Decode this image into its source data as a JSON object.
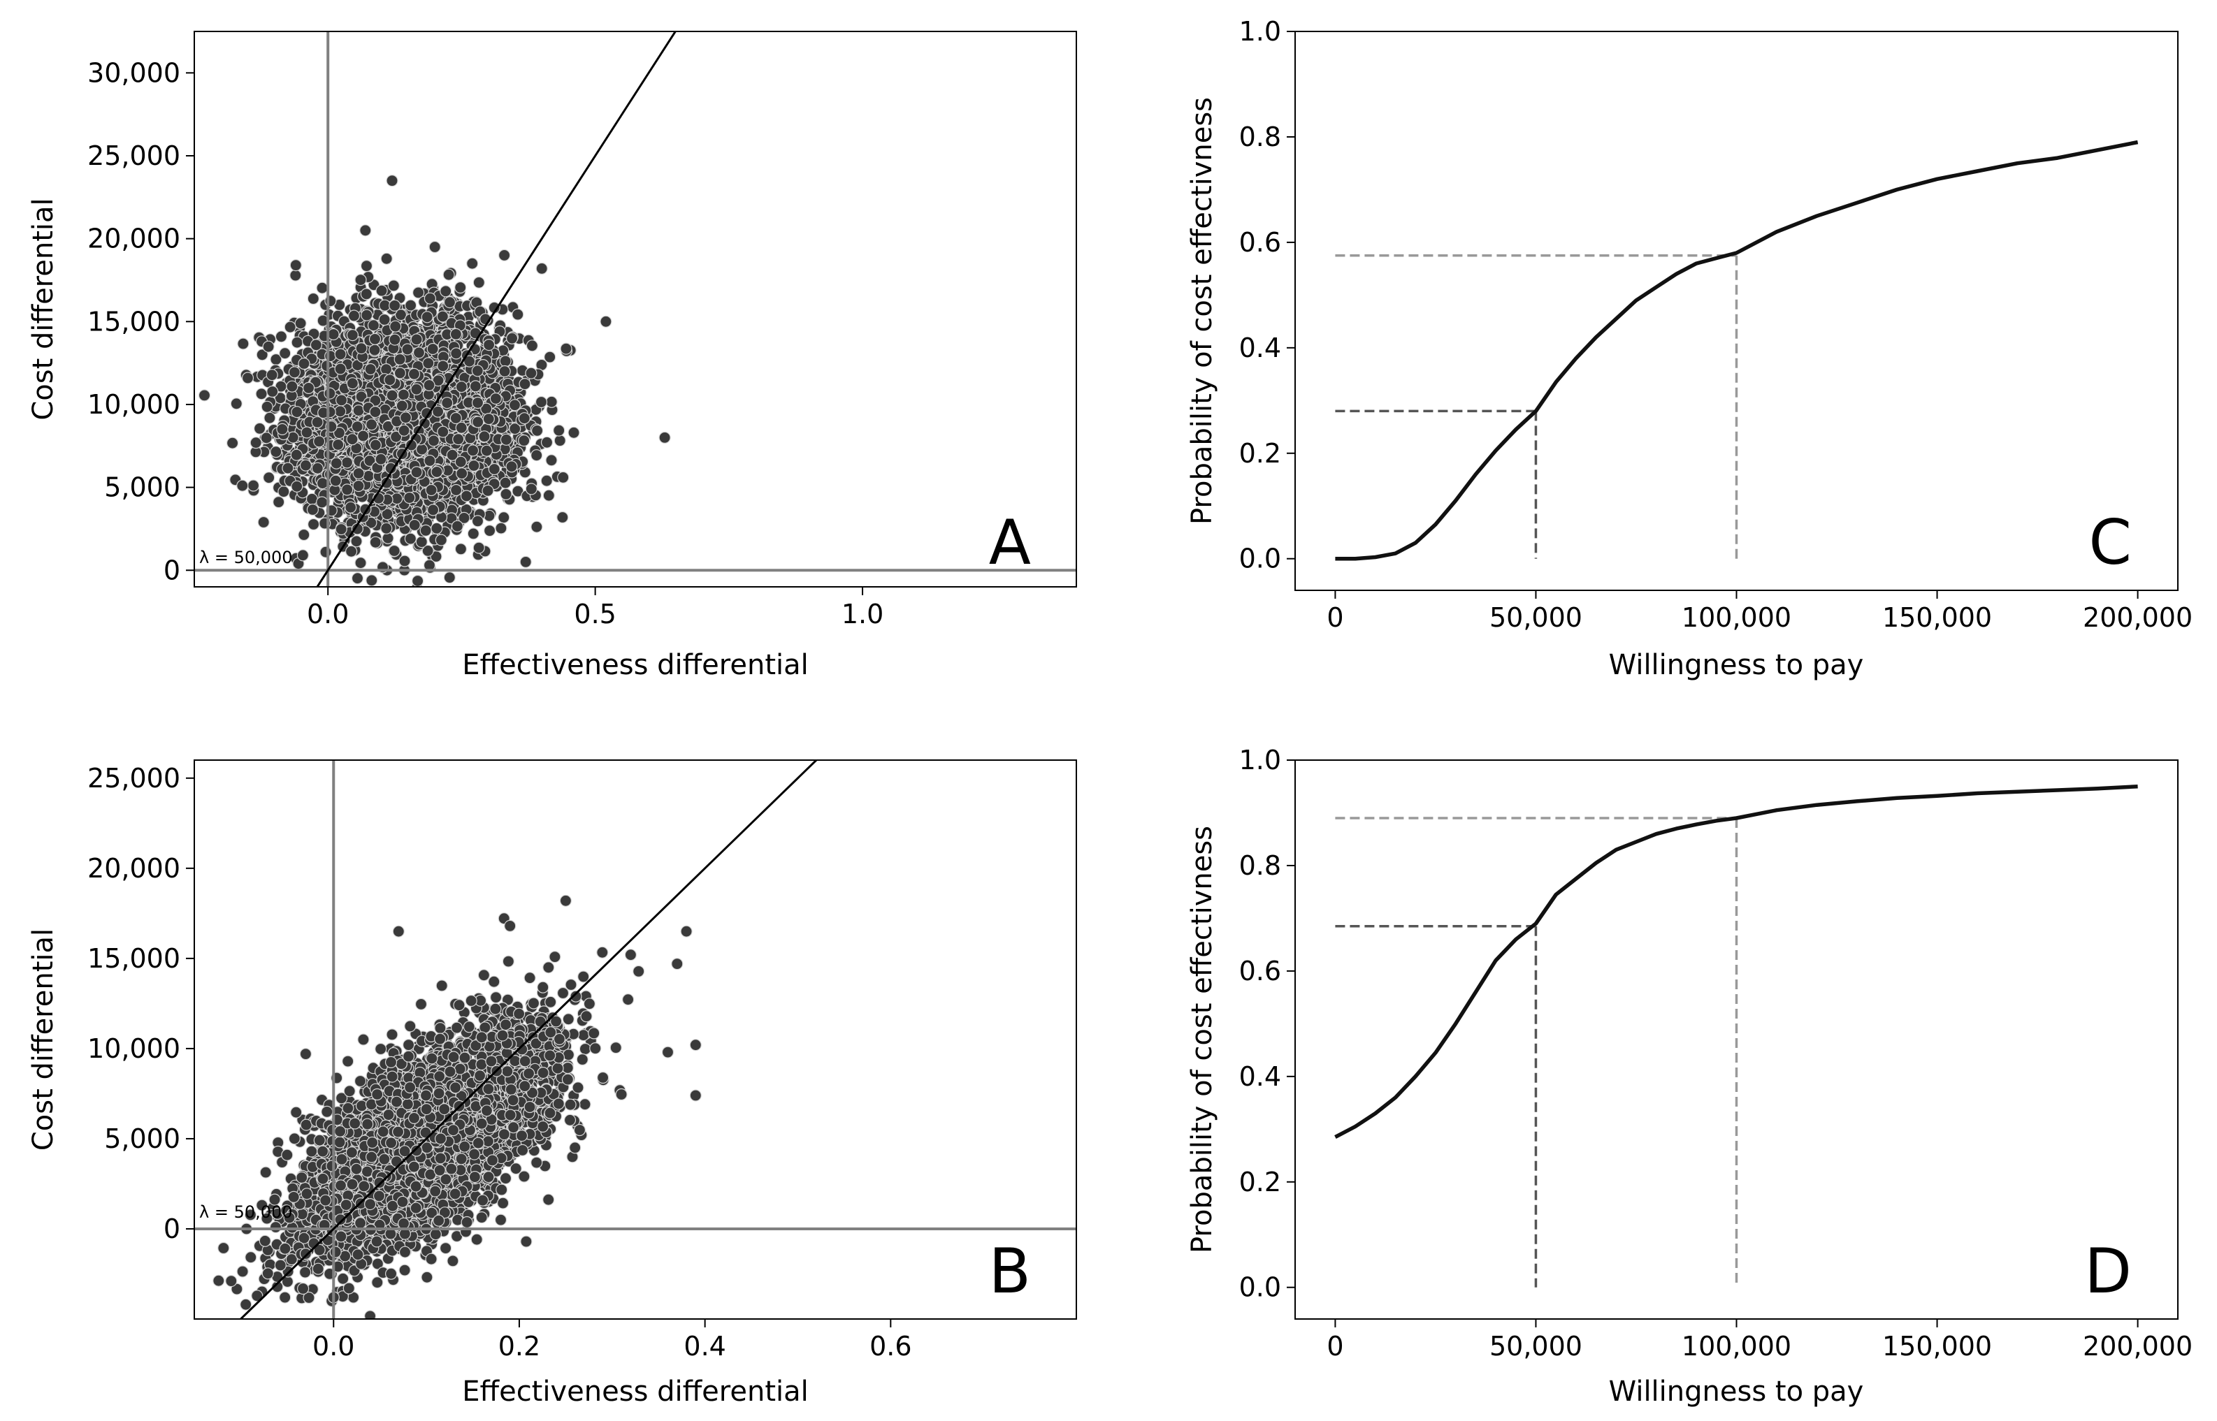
{
  "chart_data": [
    {
      "panel": "A",
      "type": "scatter",
      "xlabel": "Effectiveness differential",
      "ylabel": "Cost differential",
      "xlim": [
        -0.25,
        1.4
      ],
      "ylim": [
        -1000,
        32500
      ],
      "xticks": [
        0.0,
        0.5,
        1.0
      ],
      "xtick_labels": [
        "0.0",
        "0.5",
        "1.0"
      ],
      "yticks": [
        0,
        5000,
        10000,
        15000,
        20000,
        25000,
        30000
      ],
      "ytick_labels": [
        "0",
        "5,000",
        "10,000",
        "15,000",
        "20,000",
        "25,000",
        "30,000"
      ],
      "threshold_label": "λ = 50,000",
      "threshold_line": {
        "slope": 50000,
        "intercept": 0
      },
      "reference_lines": {
        "x": 0,
        "y": 0
      },
      "cloud": {
        "n": 4500,
        "x_mean": 0.14,
        "x_sd": 0.1,
        "y_mean": 9000,
        "y_sd": 3000,
        "corr": 0.0
      },
      "notable_points": [
        {
          "x": 0.12,
          "y": 23500
        },
        {
          "x": 0.63,
          "y": 8000
        },
        {
          "x": -0.16,
          "y": 5100
        },
        {
          "x": 0.37,
          "y": 500
        },
        {
          "x": 0.19,
          "y": 300
        },
        {
          "x": 0.52,
          "y": 15000
        },
        {
          "x": -0.15,
          "y": 11600
        },
        {
          "x": 0.46,
          "y": 8300
        },
        {
          "x": 0.33,
          "y": 19000
        },
        {
          "x": 0.4,
          "y": 18200
        },
        {
          "x": 0.27,
          "y": 18500
        },
        {
          "x": -0.06,
          "y": 18400
        },
        {
          "x": 0.44,
          "y": 5600
        },
        {
          "x": 0.07,
          "y": 20500
        },
        {
          "x": 0.2,
          "y": 19500
        }
      ]
    },
    {
      "panel": "B",
      "type": "scatter",
      "xlabel": "Effectiveness differential",
      "ylabel": "Cost differential",
      "xlim": [
        -0.15,
        0.8
      ],
      "ylim": [
        -5000,
        26000
      ],
      "xticks": [
        0.0,
        0.2,
        0.4,
        0.6
      ],
      "xtick_labels": [
        "0.0",
        "0.2",
        "0.4",
        "0.6"
      ],
      "yticks": [
        0,
        5000,
        10000,
        15000,
        20000,
        25000
      ],
      "ytick_labels": [
        "0",
        "5,000",
        "10,000",
        "15,000",
        "20,000",
        "25,000"
      ],
      "threshold_label": "λ = 50,000",
      "threshold_line": {
        "slope": 50000,
        "intercept": 0
      },
      "reference_lines": {
        "x": 0,
        "y": 0
      },
      "cloud": {
        "n": 4500,
        "x_mean": 0.1,
        "x_sd": 0.065,
        "y_mean": 5000,
        "y_sd": 3000,
        "corr": 0.62
      },
      "notable_points": [
        {
          "x": 0.25,
          "y": 18200
        },
        {
          "x": 0.38,
          "y": 16500
        },
        {
          "x": 0.39,
          "y": 10200
        },
        {
          "x": 0.39,
          "y": 7400
        },
        {
          "x": 0.07,
          "y": 16500
        },
        {
          "x": 0.19,
          "y": 16800
        },
        {
          "x": -0.05,
          "y": 4100
        },
        {
          "x": 0.0,
          "y": -3800
        },
        {
          "x": 0.37,
          "y": 14700
        },
        {
          "x": 0.32,
          "y": 15200
        },
        {
          "x": 0.11,
          "y": -300
        },
        {
          "x": 0.26,
          "y": 4500
        },
        {
          "x": -0.03,
          "y": 9700
        },
        {
          "x": 0.36,
          "y": 9800
        }
      ]
    },
    {
      "panel": "C",
      "type": "line",
      "xlabel": "Willingness to pay",
      "ylabel": "Probability of cost effectivness",
      "xlim": [
        -10000,
        210000
      ],
      "ylim": [
        -0.06,
        1.0
      ],
      "xticks": [
        0,
        50000,
        100000,
        150000,
        200000
      ],
      "xtick_labels": [
        "0",
        "50,000",
        "100,000",
        "150,000",
        "200,000"
      ],
      "yticks": [
        0.0,
        0.2,
        0.4,
        0.6,
        0.8,
        1.0
      ],
      "ytick_labels": [
        "0.0",
        "0.2",
        "0.4",
        "0.6",
        "0.8",
        "1.0"
      ],
      "series": [
        {
          "x": [
            0,
            5000,
            10000,
            15000,
            20000,
            25000,
            30000,
            35000,
            40000,
            45000,
            50000,
            55000,
            60000,
            65000,
            70000,
            75000,
            80000,
            85000,
            90000,
            95000,
            100000,
            110000,
            120000,
            130000,
            140000,
            150000,
            160000,
            170000,
            180000,
            190000,
            200000
          ],
          "y": [
            0.0,
            0.0,
            0.003,
            0.01,
            0.03,
            0.065,
            0.11,
            0.16,
            0.205,
            0.245,
            0.28,
            0.335,
            0.38,
            0.42,
            0.455,
            0.49,
            0.515,
            0.54,
            0.56,
            0.57,
            0.58,
            0.62,
            0.65,
            0.675,
            0.7,
            0.72,
            0.735,
            0.75,
            0.76,
            0.775,
            0.79
          ]
        }
      ],
      "guides": [
        {
          "wtp": 50000,
          "probability": 0.28,
          "color": "#555555"
        },
        {
          "wtp": 100000,
          "probability": 0.575,
          "color": "#999999"
        }
      ]
    },
    {
      "panel": "D",
      "type": "line",
      "xlabel": "Willingness to pay",
      "ylabel": "Probability of cost effectivness",
      "xlim": [
        -10000,
        210000
      ],
      "ylim": [
        -0.06,
        1.0
      ],
      "xticks": [
        0,
        50000,
        100000,
        150000,
        200000
      ],
      "xtick_labels": [
        "0",
        "50,000",
        "100,000",
        "150,000",
        "200,000"
      ],
      "yticks": [
        0.0,
        0.2,
        0.4,
        0.6,
        0.8,
        1.0
      ],
      "ytick_labels": [
        "0.0",
        "0.2",
        "0.4",
        "0.6",
        "0.8",
        "1.0"
      ],
      "series": [
        {
          "x": [
            0,
            5000,
            10000,
            15000,
            20000,
            25000,
            30000,
            35000,
            40000,
            45000,
            50000,
            55000,
            60000,
            65000,
            70000,
            75000,
            80000,
            85000,
            90000,
            95000,
            100000,
            110000,
            120000,
            130000,
            140000,
            150000,
            160000,
            170000,
            180000,
            190000,
            200000
          ],
          "y": [
            0.285,
            0.305,
            0.33,
            0.36,
            0.4,
            0.445,
            0.5,
            0.56,
            0.62,
            0.66,
            0.69,
            0.745,
            0.775,
            0.805,
            0.83,
            0.845,
            0.86,
            0.87,
            0.878,
            0.885,
            0.89,
            0.905,
            0.915,
            0.922,
            0.928,
            0.932,
            0.937,
            0.94,
            0.943,
            0.946,
            0.95
          ]
        }
      ],
      "guides": [
        {
          "wtp": 50000,
          "probability": 0.685,
          "color": "#555555"
        },
        {
          "wtp": 100000,
          "probability": 0.89,
          "color": "#999999"
        }
      ]
    }
  ],
  "panel_letters": [
    "A",
    "B",
    "C",
    "D"
  ]
}
